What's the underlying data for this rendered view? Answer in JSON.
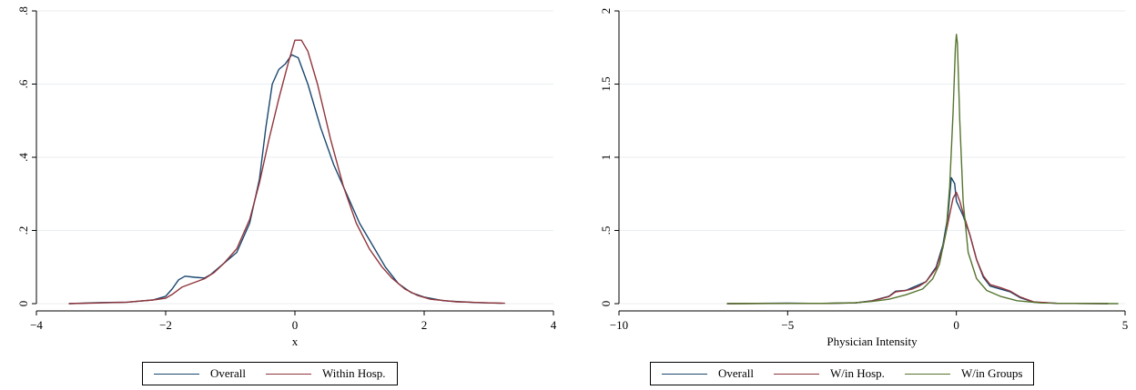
{
  "chart_data": [
    {
      "type": "line",
      "xlabel": "x",
      "ylabel": "",
      "xlim": [
        -4,
        4
      ],
      "ylim": [
        0,
        0.8
      ],
      "xticks": [
        -4,
        -2,
        0,
        2,
        4
      ],
      "xtick_labels": [
        "−4",
        "−2",
        "0",
        "2",
        "4"
      ],
      "yticks": [
        0,
        0.2,
        0.4,
        0.6,
        0.8
      ],
      "ytick_labels": [
        "0",
        ".2",
        ".4",
        ".6",
        ".8"
      ],
      "grid": true,
      "legend_position": "bottom",
      "series": [
        {
          "name": "Overall",
          "color": "#1a476f",
          "points": [
            [
              -3.5,
              0.0
            ],
            [
              -3.0,
              0.003
            ],
            [
              -2.6,
              0.004
            ],
            [
              -2.2,
              0.01
            ],
            [
              -2.0,
              0.02
            ],
            [
              -1.9,
              0.04
            ],
            [
              -1.8,
              0.065
            ],
            [
              -1.7,
              0.075
            ],
            [
              -1.55,
              0.072
            ],
            [
              -1.4,
              0.07
            ],
            [
              -1.3,
              0.08
            ],
            [
              -1.1,
              0.11
            ],
            [
              -0.9,
              0.14
            ],
            [
              -0.7,
              0.22
            ],
            [
              -0.55,
              0.34
            ],
            [
              -0.45,
              0.48
            ],
            [
              -0.35,
              0.6
            ],
            [
              -0.25,
              0.64
            ],
            [
              -0.15,
              0.655
            ],
            [
              -0.05,
              0.68
            ],
            [
              0.05,
              0.672
            ],
            [
              0.2,
              0.6
            ],
            [
              0.4,
              0.48
            ],
            [
              0.6,
              0.38
            ],
            [
              0.8,
              0.3
            ],
            [
              1.0,
              0.22
            ],
            [
              1.2,
              0.16
            ],
            [
              1.4,
              0.1
            ],
            [
              1.6,
              0.055
            ],
            [
              1.8,
              0.03
            ],
            [
              2.0,
              0.018
            ],
            [
              2.3,
              0.008
            ],
            [
              2.8,
              0.003
            ],
            [
              3.2,
              0.001
            ]
          ]
        },
        {
          "name": "Within Hosp.",
          "color": "#90353b",
          "points": [
            [
              -3.5,
              0.0
            ],
            [
              -3.0,
              0.002
            ],
            [
              -2.6,
              0.004
            ],
            [
              -2.2,
              0.01
            ],
            [
              -2.0,
              0.015
            ],
            [
              -1.9,
              0.025
            ],
            [
              -1.75,
              0.045
            ],
            [
              -1.6,
              0.055
            ],
            [
              -1.4,
              0.068
            ],
            [
              -1.25,
              0.085
            ],
            [
              -1.1,
              0.11
            ],
            [
              -0.9,
              0.15
            ],
            [
              -0.7,
              0.23
            ],
            [
              -0.55,
              0.33
            ],
            [
              -0.4,
              0.45
            ],
            [
              -0.25,
              0.56
            ],
            [
              -0.1,
              0.66
            ],
            [
              0.0,
              0.72
            ],
            [
              0.1,
              0.72
            ],
            [
              0.2,
              0.69
            ],
            [
              0.35,
              0.6
            ],
            [
              0.55,
              0.45
            ],
            [
              0.75,
              0.32
            ],
            [
              0.95,
              0.22
            ],
            [
              1.15,
              0.15
            ],
            [
              1.35,
              0.1
            ],
            [
              1.5,
              0.07
            ],
            [
              1.7,
              0.04
            ],
            [
              1.9,
              0.022
            ],
            [
              2.1,
              0.012
            ],
            [
              2.5,
              0.005
            ],
            [
              3.0,
              0.002
            ],
            [
              3.25,
              0.001
            ]
          ]
        }
      ]
    },
    {
      "type": "line",
      "xlabel": "Physician Intensity",
      "ylabel": "",
      "xlim": [
        -10,
        5
      ],
      "ylim": [
        0,
        2
      ],
      "xticks": [
        -10,
        -5,
        0,
        5
      ],
      "xtick_labels": [
        "−10",
        "−5",
        "0",
        "5"
      ],
      "yticks": [
        0,
        0.5,
        1,
        1.5,
        2
      ],
      "ytick_labels": [
        "0",
        ".5",
        "1",
        "1.5",
        "2"
      ],
      "grid": true,
      "legend_position": "bottom",
      "series": [
        {
          "name": "Overall",
          "color": "#1a476f",
          "points": [
            [
              -6.8,
              0.0
            ],
            [
              -5.0,
              0.003
            ],
            [
              -4.0,
              0.001
            ],
            [
              -3.0,
              0.005
            ],
            [
              -2.5,
              0.02
            ],
            [
              -2.0,
              0.05
            ],
            [
              -1.8,
              0.085
            ],
            [
              -1.5,
              0.09
            ],
            [
              -1.3,
              0.11
            ],
            [
              -1.1,
              0.13
            ],
            [
              -0.9,
              0.15
            ],
            [
              -0.6,
              0.25
            ],
            [
              -0.4,
              0.4
            ],
            [
              -0.25,
              0.6
            ],
            [
              -0.15,
              0.86
            ],
            [
              -0.05,
              0.82
            ],
            [
              0.0,
              0.7
            ],
            [
              0.1,
              0.65
            ],
            [
              0.2,
              0.6
            ],
            [
              0.4,
              0.47
            ],
            [
              0.6,
              0.3
            ],
            [
              0.8,
              0.18
            ],
            [
              1.0,
              0.12
            ],
            [
              1.3,
              0.1
            ],
            [
              1.6,
              0.08
            ],
            [
              1.9,
              0.04
            ],
            [
              2.3,
              0.01
            ],
            [
              3.0,
              0.002
            ],
            [
              4.5,
              0.0
            ]
          ]
        },
        {
          "name": "W/in Hosp.",
          "color": "#90353b",
          "points": [
            [
              -6.8,
              0.0
            ],
            [
              -5.0,
              0.002
            ],
            [
              -4.0,
              0.001
            ],
            [
              -3.0,
              0.005
            ],
            [
              -2.5,
              0.018
            ],
            [
              -2.0,
              0.048
            ],
            [
              -1.8,
              0.08
            ],
            [
              -1.5,
              0.09
            ],
            [
              -1.3,
              0.1
            ],
            [
              -1.1,
              0.12
            ],
            [
              -0.9,
              0.15
            ],
            [
              -0.6,
              0.24
            ],
            [
              -0.4,
              0.38
            ],
            [
              -0.25,
              0.55
            ],
            [
              -0.1,
              0.72
            ],
            [
              0.0,
              0.76
            ],
            [
              0.1,
              0.7
            ],
            [
              0.2,
              0.62
            ],
            [
              0.4,
              0.47
            ],
            [
              0.6,
              0.3
            ],
            [
              0.8,
              0.19
            ],
            [
              1.0,
              0.13
            ],
            [
              1.3,
              0.11
            ],
            [
              1.6,
              0.085
            ],
            [
              1.9,
              0.045
            ],
            [
              2.3,
              0.012
            ],
            [
              3.0,
              0.002
            ],
            [
              4.5,
              0.0
            ]
          ]
        },
        {
          "name": "W/in Groups",
          "color": "#55752f",
          "points": [
            [
              -6.8,
              0.0
            ],
            [
              -5.0,
              0.001
            ],
            [
              -4.0,
              0.002
            ],
            [
              -3.0,
              0.006
            ],
            [
              -2.5,
              0.015
            ],
            [
              -2.0,
              0.03
            ],
            [
              -1.5,
              0.06
            ],
            [
              -1.0,
              0.1
            ],
            [
              -0.7,
              0.17
            ],
            [
              -0.5,
              0.27
            ],
            [
              -0.3,
              0.5
            ],
            [
              -0.2,
              0.8
            ],
            [
              -0.1,
              1.3
            ],
            [
              -0.03,
              1.75
            ],
            [
              0.0,
              1.84
            ],
            [
              0.03,
              1.78
            ],
            [
              0.1,
              1.25
            ],
            [
              0.2,
              0.7
            ],
            [
              0.35,
              0.35
            ],
            [
              0.6,
              0.17
            ],
            [
              0.9,
              0.09
            ],
            [
              1.3,
              0.05
            ],
            [
              1.8,
              0.02
            ],
            [
              2.5,
              0.005
            ],
            [
              3.5,
              0.001
            ],
            [
              4.8,
              0.0
            ]
          ]
        }
      ]
    }
  ]
}
